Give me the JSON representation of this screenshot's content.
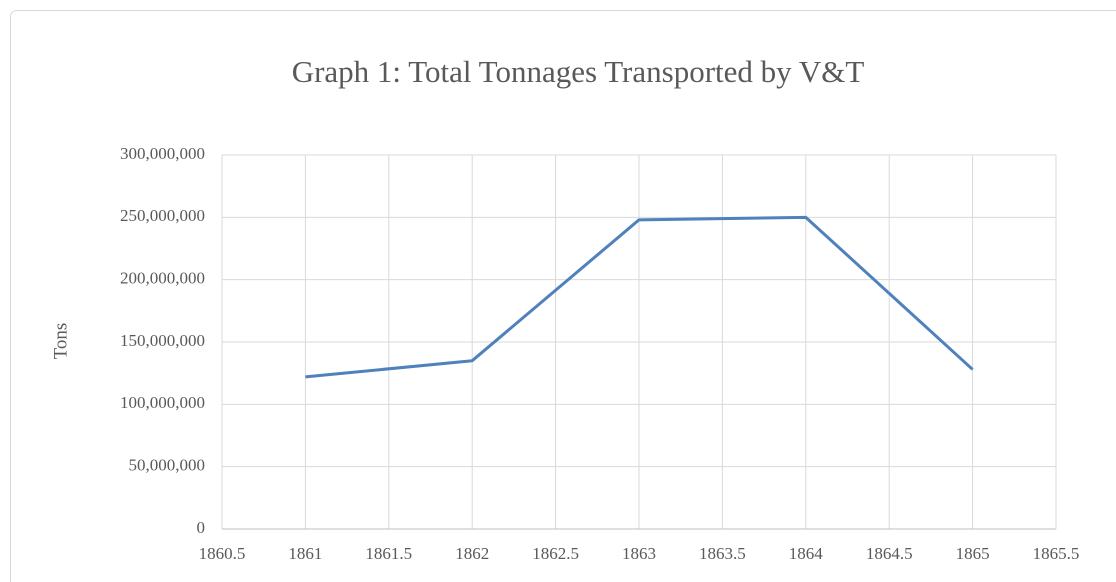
{
  "chart_data": {
    "type": "line",
    "title": "Graph 1: Total Tonnages Transported by V&T",
    "y_label": "Tons",
    "x": [
      1861,
      1862,
      1863,
      1864,
      1865
    ],
    "series": [
      {
        "name": "Tons",
        "color": "#4f81bd",
        "values": [
          122000000,
          135000000,
          248000000,
          250000000,
          128000000
        ]
      }
    ],
    "xlim": [
      1860.5,
      1865.5
    ],
    "xticks": [
      1860.5,
      1861,
      1861.5,
      1862,
      1862.5,
      1863,
      1863.5,
      1864,
      1864.5,
      1865,
      1865.5
    ],
    "ylim": [
      0,
      300000000
    ],
    "yticks": [
      0,
      {
        "value": 50000000,
        "label": "50,000,000"
      },
      {
        "value": 100000000,
        "label": "100,000,000"
      },
      {
        "value": 150000000,
        "label": "150,000,000"
      },
      {
        "value": 200000000,
        "label": "200,000,000"
      },
      {
        "value": 250000000,
        "label": "250,000,000"
      },
      {
        "value": 300000000,
        "label": "300,000,000"
      }
    ],
    "grid": true
  }
}
